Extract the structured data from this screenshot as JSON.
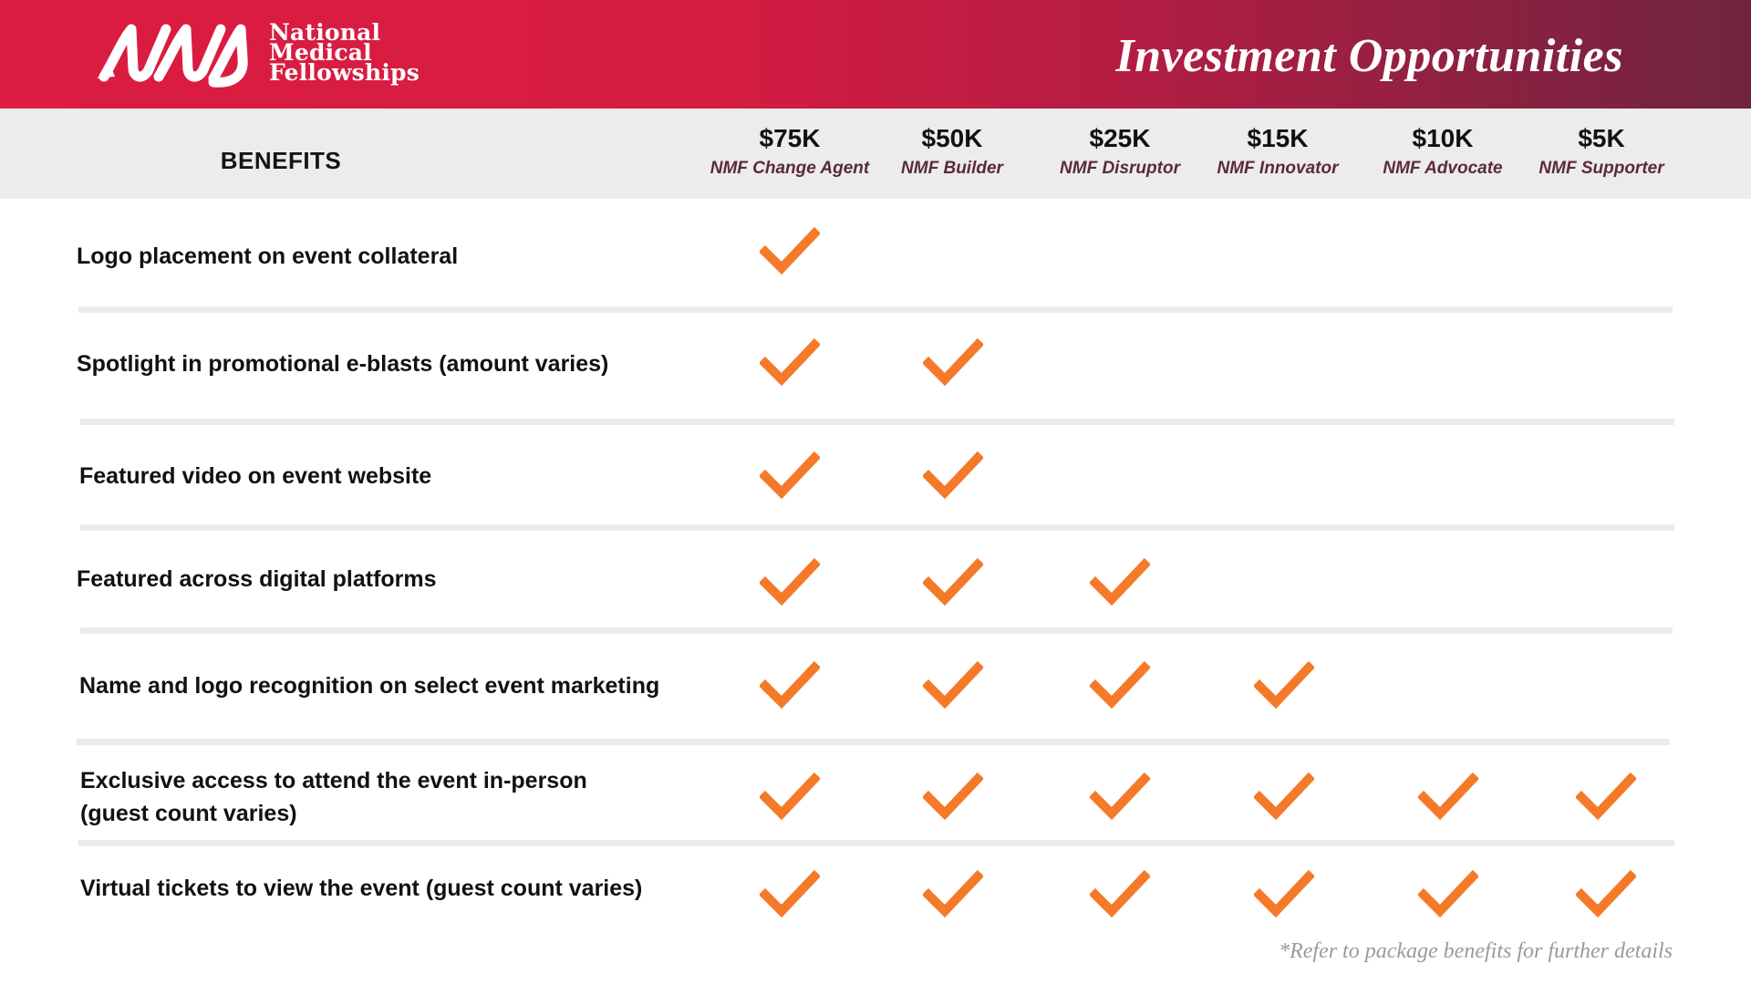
{
  "header": {
    "logo_lines": [
      "National",
      "Medical",
      "Fellowships"
    ],
    "title": "Investment Opportunities",
    "brand_color": "#dc1c41"
  },
  "table": {
    "benefits_header": "BENEFITS",
    "tiers": [
      {
        "price": "$75K",
        "name": "NMF Change Agent"
      },
      {
        "price": "$50K",
        "name": "NMF Builder"
      },
      {
        "price": "$25K",
        "name": "NMF Disruptor"
      },
      {
        "price": "$15K",
        "name": "NMF Innovator"
      },
      {
        "price": "$10K",
        "name": "NMF Advocate"
      },
      {
        "price": "$5K",
        "name": "NMF Supporter"
      }
    ],
    "check_color": "#f47a2a",
    "rows": [
      {
        "lines": [
          "Logo placement on event collateral"
        ],
        "checks": [
          true,
          false,
          false,
          false,
          false,
          false
        ]
      },
      {
        "lines": [
          "Spotlight in promotional e-blasts (amount varies)"
        ],
        "checks": [
          true,
          true,
          false,
          false,
          false,
          false
        ]
      },
      {
        "lines": [
          "Featured video on event website"
        ],
        "checks": [
          true,
          true,
          false,
          false,
          false,
          false
        ]
      },
      {
        "lines": [
          "Featured across digital platforms"
        ],
        "checks": [
          true,
          true,
          true,
          false,
          false,
          false
        ]
      },
      {
        "lines": [
          "Name and logo recognition on select event marketing"
        ],
        "checks": [
          true,
          true,
          true,
          true,
          false,
          false
        ]
      },
      {
        "lines": [
          "Exclusive access to attend the event in-person",
          "(guest count varies)"
        ],
        "checks": [
          true,
          true,
          true,
          true,
          true,
          true
        ]
      },
      {
        "lines": [
          "Virtual tickets to view the event (guest count varies)"
        ],
        "checks": [
          true,
          true,
          true,
          true,
          true,
          true
        ]
      }
    ]
  },
  "footnote": "*Refer to package benefits for further details"
}
